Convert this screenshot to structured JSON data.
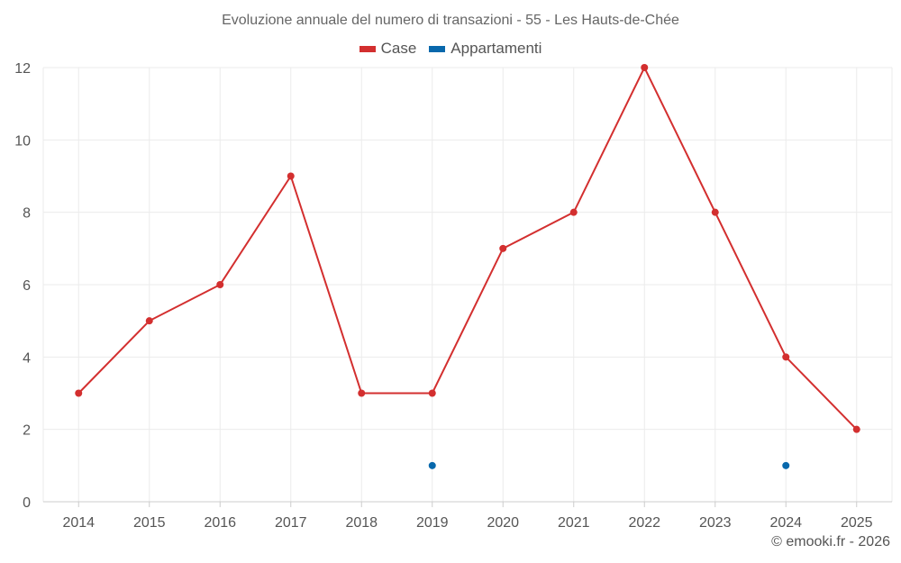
{
  "title": "Evoluzione annuale del numero di transazioni - 55 - Les Hauts-de-Chée",
  "credit": "© emooki.fr - 2026",
  "colors": {
    "case": "#d32f2f",
    "appartamenti": "#0868ac",
    "grid": "#ebebeb",
    "axis": "#cccccc"
  },
  "chart_data": {
    "type": "line",
    "title": "Evoluzione annuale del numero di transazioni - 55 - Les Hauts-de-Chée",
    "categories": [
      "2014",
      "2015",
      "2016",
      "2017",
      "2018",
      "2019",
      "2020",
      "2021",
      "2022",
      "2023",
      "2024",
      "2025"
    ],
    "series": [
      {
        "name": "Case",
        "color": "#d32f2f",
        "values": [
          3,
          5,
          6,
          9,
          3,
          3,
          7,
          8,
          12,
          8,
          4,
          2
        ]
      },
      {
        "name": "Appartamenti",
        "color": "#0868ac",
        "values": [
          null,
          null,
          null,
          null,
          null,
          1,
          null,
          null,
          null,
          null,
          1,
          null
        ]
      }
    ],
    "ylim": [
      0,
      12
    ],
    "yticks": [
      0,
      2,
      4,
      6,
      8,
      10,
      12
    ],
    "grid": true,
    "legend": "top-center",
    "xlabel": "",
    "ylabel": ""
  }
}
